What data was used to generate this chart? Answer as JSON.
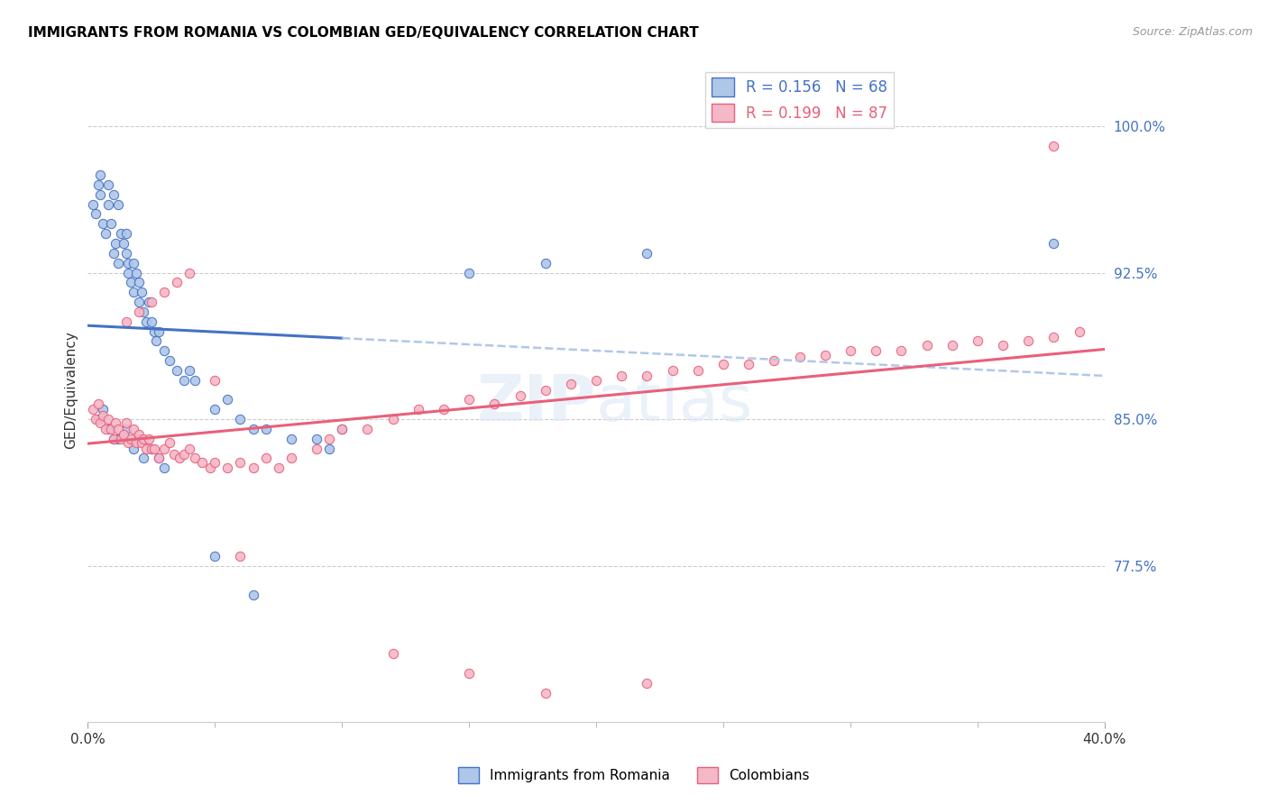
{
  "title": "IMMIGRANTS FROM ROMANIA VS COLOMBIAN GED/EQUIVALENCY CORRELATION CHART",
  "source": "Source: ZipAtlas.com",
  "ylabel": "GED/Equivalency",
  "x_min": 0.0,
  "x_max": 0.4,
  "y_min": 0.695,
  "y_max": 1.035,
  "y_ticks": [
    0.775,
    0.85,
    0.925,
    1.0
  ],
  "y_tick_labels": [
    "77.5%",
    "85.0%",
    "92.5%",
    "100.0%"
  ],
  "x_tick_labels": [
    "0.0%",
    "40.0%"
  ],
  "legend_romania": "R = 0.156   N = 68",
  "legend_colombia": "R = 0.199   N = 87",
  "legend_label_romania": "Immigrants from Romania",
  "legend_label_colombia": "Colombians",
  "scatter_color_romania": "#aec6e8",
  "scatter_color_colombia": "#f4b8c8",
  "line_color_romania": "#4472c4",
  "line_color_colombia": "#e8607a",
  "line_color_dashed": "#b0c8e8",
  "background_color": "#ffffff",
  "watermark": "ZIPatlas",
  "romania_x": [
    0.002,
    0.003,
    0.004,
    0.005,
    0.005,
    0.006,
    0.007,
    0.008,
    0.008,
    0.009,
    0.01,
    0.01,
    0.011,
    0.012,
    0.012,
    0.013,
    0.014,
    0.015,
    0.015,
    0.016,
    0.016,
    0.017,
    0.018,
    0.018,
    0.019,
    0.02,
    0.02,
    0.021,
    0.022,
    0.023,
    0.024,
    0.025,
    0.026,
    0.027,
    0.028,
    0.03,
    0.032,
    0.035,
    0.038,
    0.04,
    0.042,
    0.05,
    0.055,
    0.06,
    0.065,
    0.07,
    0.08,
    0.09,
    0.095,
    0.1,
    0.004,
    0.006,
    0.008,
    0.01,
    0.012,
    0.015,
    0.018,
    0.02,
    0.022,
    0.025,
    0.028,
    0.03,
    0.05,
    0.065,
    0.15,
    0.18,
    0.22,
    0.38
  ],
  "romania_y": [
    0.96,
    0.955,
    0.97,
    0.975,
    0.965,
    0.95,
    0.945,
    0.97,
    0.96,
    0.95,
    0.965,
    0.935,
    0.94,
    0.96,
    0.93,
    0.945,
    0.94,
    0.945,
    0.935,
    0.93,
    0.925,
    0.92,
    0.93,
    0.915,
    0.925,
    0.92,
    0.91,
    0.915,
    0.905,
    0.9,
    0.91,
    0.9,
    0.895,
    0.89,
    0.895,
    0.885,
    0.88,
    0.875,
    0.87,
    0.875,
    0.87,
    0.855,
    0.86,
    0.85,
    0.845,
    0.845,
    0.84,
    0.84,
    0.835,
    0.845,
    0.85,
    0.855,
    0.845,
    0.84,
    0.84,
    0.845,
    0.835,
    0.84,
    0.83,
    0.835,
    0.83,
    0.825,
    0.78,
    0.76,
    0.925,
    0.93,
    0.935,
    0.94
  ],
  "colombia_x": [
    0.002,
    0.003,
    0.004,
    0.005,
    0.006,
    0.007,
    0.008,
    0.009,
    0.01,
    0.011,
    0.012,
    0.013,
    0.014,
    0.015,
    0.016,
    0.017,
    0.018,
    0.019,
    0.02,
    0.021,
    0.022,
    0.023,
    0.024,
    0.025,
    0.026,
    0.028,
    0.03,
    0.032,
    0.034,
    0.036,
    0.038,
    0.04,
    0.042,
    0.045,
    0.048,
    0.05,
    0.055,
    0.06,
    0.065,
    0.07,
    0.075,
    0.08,
    0.09,
    0.095,
    0.1,
    0.11,
    0.12,
    0.13,
    0.14,
    0.15,
    0.16,
    0.17,
    0.18,
    0.19,
    0.2,
    0.21,
    0.22,
    0.23,
    0.24,
    0.25,
    0.26,
    0.27,
    0.28,
    0.29,
    0.3,
    0.31,
    0.32,
    0.33,
    0.34,
    0.35,
    0.36,
    0.37,
    0.38,
    0.39,
    0.015,
    0.02,
    0.025,
    0.03,
    0.035,
    0.04,
    0.05,
    0.06,
    0.12,
    0.15,
    0.18,
    0.22,
    0.38
  ],
  "colombia_y": [
    0.855,
    0.85,
    0.858,
    0.848,
    0.852,
    0.845,
    0.85,
    0.845,
    0.84,
    0.848,
    0.845,
    0.84,
    0.842,
    0.848,
    0.838,
    0.84,
    0.845,
    0.838,
    0.842,
    0.838,
    0.84,
    0.835,
    0.84,
    0.835,
    0.835,
    0.83,
    0.835,
    0.838,
    0.832,
    0.83,
    0.832,
    0.835,
    0.83,
    0.828,
    0.825,
    0.828,
    0.825,
    0.828,
    0.825,
    0.83,
    0.825,
    0.83,
    0.835,
    0.84,
    0.845,
    0.845,
    0.85,
    0.855,
    0.855,
    0.86,
    0.858,
    0.862,
    0.865,
    0.868,
    0.87,
    0.872,
    0.872,
    0.875,
    0.875,
    0.878,
    0.878,
    0.88,
    0.882,
    0.883,
    0.885,
    0.885,
    0.885,
    0.888,
    0.888,
    0.89,
    0.888,
    0.89,
    0.892,
    0.895,
    0.9,
    0.905,
    0.91,
    0.915,
    0.92,
    0.925,
    0.87,
    0.78,
    0.73,
    0.72,
    0.71,
    0.715,
    0.99
  ]
}
